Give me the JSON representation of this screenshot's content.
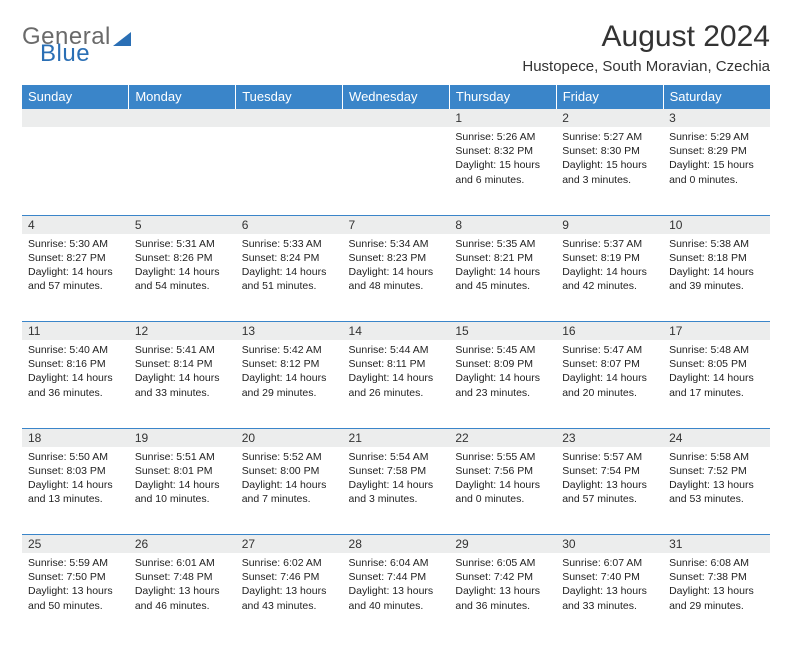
{
  "brand": {
    "part1": "General",
    "part2": "Blue"
  },
  "title": "August 2024",
  "location": "Hustopece, South Moravian, Czechia",
  "colors": {
    "header_bg": "#3a85c9",
    "header_text": "#ffffff",
    "daynum_bg": "#eceded",
    "rule": "#3a85c9",
    "logo_gray": "#6a6a6a",
    "logo_blue": "#2a6fb5",
    "body_text": "#222222"
  },
  "weekdays": [
    "Sunday",
    "Monday",
    "Tuesday",
    "Wednesday",
    "Thursday",
    "Friday",
    "Saturday"
  ],
  "weeks": [
    [
      null,
      null,
      null,
      null,
      {
        "n": "1",
        "sr": "5:26 AM",
        "ss": "8:32 PM",
        "dl": "15 hours and 6 minutes."
      },
      {
        "n": "2",
        "sr": "5:27 AM",
        "ss": "8:30 PM",
        "dl": "15 hours and 3 minutes."
      },
      {
        "n": "3",
        "sr": "5:29 AM",
        "ss": "8:29 PM",
        "dl": "15 hours and 0 minutes."
      }
    ],
    [
      {
        "n": "4",
        "sr": "5:30 AM",
        "ss": "8:27 PM",
        "dl": "14 hours and 57 minutes."
      },
      {
        "n": "5",
        "sr": "5:31 AM",
        "ss": "8:26 PM",
        "dl": "14 hours and 54 minutes."
      },
      {
        "n": "6",
        "sr": "5:33 AM",
        "ss": "8:24 PM",
        "dl": "14 hours and 51 minutes."
      },
      {
        "n": "7",
        "sr": "5:34 AM",
        "ss": "8:23 PM",
        "dl": "14 hours and 48 minutes."
      },
      {
        "n": "8",
        "sr": "5:35 AM",
        "ss": "8:21 PM",
        "dl": "14 hours and 45 minutes."
      },
      {
        "n": "9",
        "sr": "5:37 AM",
        "ss": "8:19 PM",
        "dl": "14 hours and 42 minutes."
      },
      {
        "n": "10",
        "sr": "5:38 AM",
        "ss": "8:18 PM",
        "dl": "14 hours and 39 minutes."
      }
    ],
    [
      {
        "n": "11",
        "sr": "5:40 AM",
        "ss": "8:16 PM",
        "dl": "14 hours and 36 minutes."
      },
      {
        "n": "12",
        "sr": "5:41 AM",
        "ss": "8:14 PM",
        "dl": "14 hours and 33 minutes."
      },
      {
        "n": "13",
        "sr": "5:42 AM",
        "ss": "8:12 PM",
        "dl": "14 hours and 29 minutes."
      },
      {
        "n": "14",
        "sr": "5:44 AM",
        "ss": "8:11 PM",
        "dl": "14 hours and 26 minutes."
      },
      {
        "n": "15",
        "sr": "5:45 AM",
        "ss": "8:09 PM",
        "dl": "14 hours and 23 minutes."
      },
      {
        "n": "16",
        "sr": "5:47 AM",
        "ss": "8:07 PM",
        "dl": "14 hours and 20 minutes."
      },
      {
        "n": "17",
        "sr": "5:48 AM",
        "ss": "8:05 PM",
        "dl": "14 hours and 17 minutes."
      }
    ],
    [
      {
        "n": "18",
        "sr": "5:50 AM",
        "ss": "8:03 PM",
        "dl": "14 hours and 13 minutes."
      },
      {
        "n": "19",
        "sr": "5:51 AM",
        "ss": "8:01 PM",
        "dl": "14 hours and 10 minutes."
      },
      {
        "n": "20",
        "sr": "5:52 AM",
        "ss": "8:00 PM",
        "dl": "14 hours and 7 minutes."
      },
      {
        "n": "21",
        "sr": "5:54 AM",
        "ss": "7:58 PM",
        "dl": "14 hours and 3 minutes."
      },
      {
        "n": "22",
        "sr": "5:55 AM",
        "ss": "7:56 PM",
        "dl": "14 hours and 0 minutes."
      },
      {
        "n": "23",
        "sr": "5:57 AM",
        "ss": "7:54 PM",
        "dl": "13 hours and 57 minutes."
      },
      {
        "n": "24",
        "sr": "5:58 AM",
        "ss": "7:52 PM",
        "dl": "13 hours and 53 minutes."
      }
    ],
    [
      {
        "n": "25",
        "sr": "5:59 AM",
        "ss": "7:50 PM",
        "dl": "13 hours and 50 minutes."
      },
      {
        "n": "26",
        "sr": "6:01 AM",
        "ss": "7:48 PM",
        "dl": "13 hours and 46 minutes."
      },
      {
        "n": "27",
        "sr": "6:02 AM",
        "ss": "7:46 PM",
        "dl": "13 hours and 43 minutes."
      },
      {
        "n": "28",
        "sr": "6:04 AM",
        "ss": "7:44 PM",
        "dl": "13 hours and 40 minutes."
      },
      {
        "n": "29",
        "sr": "6:05 AM",
        "ss": "7:42 PM",
        "dl": "13 hours and 36 minutes."
      },
      {
        "n": "30",
        "sr": "6:07 AM",
        "ss": "7:40 PM",
        "dl": "13 hours and 33 minutes."
      },
      {
        "n": "31",
        "sr": "6:08 AM",
        "ss": "7:38 PM",
        "dl": "13 hours and 29 minutes."
      }
    ]
  ],
  "labels": {
    "sunrise": "Sunrise:",
    "sunset": "Sunset:",
    "daylight": "Daylight:"
  }
}
